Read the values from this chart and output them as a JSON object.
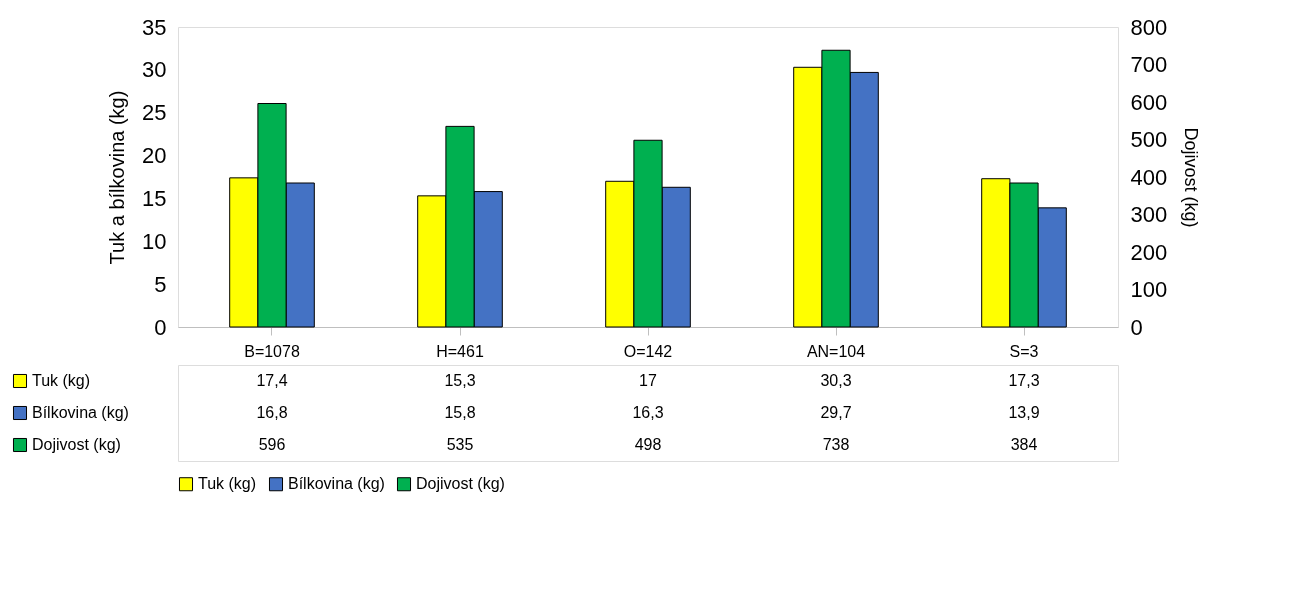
{
  "chart_data": {
    "type": "bar",
    "ylabel": "Tuk a bílkovina (kg)",
    "y2label": "Dojivost (kg)",
    "categories": [
      "B=1078",
      "H=461",
      "O=142",
      "AN=104",
      "S=3"
    ],
    "series": [
      {
        "name": "Tuk (kg)",
        "color": "#ffff00",
        "values": [
          17.4,
          15.3,
          17,
          30.3,
          17.3
        ],
        "value_labels": [
          "17,4",
          "15,3",
          "17",
          "30,3",
          "17,3"
        ]
      },
      {
        "name": "Bílkovina (kg)",
        "color": "#4472c4",
        "values": [
          16.8,
          15.8,
          16.3,
          29.7,
          13.9
        ],
        "value_labels": [
          "16,8",
          "15,8",
          "16,3",
          "29,7",
          "13,9"
        ]
      },
      {
        "name": "Dojivost (kg)",
        "color": "#00b050",
        "axis": "y2",
        "values": [
          596,
          535,
          498,
          738,
          384
        ],
        "value_labels": [
          "596",
          "535",
          "498",
          "738",
          "384"
        ]
      }
    ],
    "ylim": [
      0,
      35
    ],
    "yticks": [
      0,
      5,
      10,
      15,
      20,
      25,
      30,
      35
    ],
    "y2lim": [
      0,
      800
    ],
    "y2ticks": [
      0,
      100,
      200,
      300,
      400,
      500,
      600,
      700,
      800
    ],
    "grid": false,
    "legend": "bottom"
  }
}
